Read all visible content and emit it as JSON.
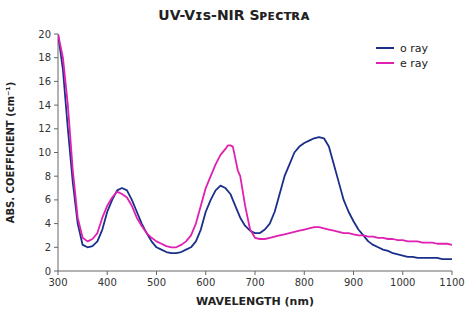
{
  "chart_data": {
    "type": "line",
    "title": "UV-Vɪs-NIR Sᴘᴇᴄᴛʀᴀ",
    "xlabel": "WAVELENGTH (nm)",
    "ylabel": "ABS. COEFFICIENT (cm⁻¹)",
    "xlim": [
      300,
      1100
    ],
    "ylim": [
      0,
      20
    ],
    "xticks": [
      300,
      400,
      500,
      600,
      700,
      800,
      900,
      1000,
      1100
    ],
    "yticks": [
      0,
      2,
      4,
      6,
      8,
      10,
      12,
      14,
      16,
      18,
      20
    ],
    "grid": false,
    "legend": "upper right",
    "series": [
      {
        "name": "o ray",
        "color": "#1a2f8a",
        "x": [
          300,
          310,
          320,
          330,
          340,
          350,
          360,
          370,
          380,
          390,
          400,
          410,
          420,
          430,
          440,
          450,
          460,
          470,
          480,
          490,
          500,
          510,
          520,
          530,
          540,
          550,
          560,
          570,
          580,
          590,
          600,
          610,
          620,
          630,
          640,
          650,
          660,
          670,
          680,
          690,
          700,
          710,
          720,
          730,
          740,
          750,
          760,
          770,
          780,
          790,
          800,
          810,
          820,
          830,
          840,
          850,
          860,
          870,
          880,
          890,
          900,
          910,
          920,
          930,
          940,
          950,
          960,
          970,
          980,
          990,
          1000,
          1010,
          1020,
          1030,
          1040,
          1050,
          1060,
          1070,
          1080,
          1090,
          1100
        ],
        "values": [
          20,
          17,
          12,
          7.5,
          4.0,
          2.2,
          2.0,
          2.1,
          2.5,
          3.5,
          5.0,
          6.0,
          6.8,
          7.0,
          6.8,
          6.0,
          5.0,
          4.0,
          3.2,
          2.5,
          2.0,
          1.8,
          1.6,
          1.5,
          1.5,
          1.6,
          1.8,
          2.0,
          2.5,
          3.5,
          5.0,
          6.0,
          6.8,
          7.2,
          7.0,
          6.5,
          5.5,
          4.5,
          3.8,
          3.4,
          3.2,
          3.2,
          3.5,
          4.0,
          5.0,
          6.5,
          8.0,
          9.0,
          10.0,
          10.5,
          10.8,
          11.0,
          11.2,
          11.3,
          11.2,
          10.5,
          9.0,
          7.5,
          6.0,
          5.0,
          4.2,
          3.5,
          3.0,
          2.5,
          2.2,
          2.0,
          1.8,
          1.7,
          1.5,
          1.4,
          1.3,
          1.2,
          1.2,
          1.1,
          1.1,
          1.1,
          1.1,
          1.1,
          1.0,
          1.0,
          1.0
        ]
      },
      {
        "name": "e ray",
        "color": "#e020b0",
        "x": [
          300,
          310,
          320,
          330,
          340,
          350,
          360,
          370,
          380,
          390,
          400,
          410,
          420,
          430,
          440,
          450,
          460,
          470,
          480,
          490,
          500,
          510,
          520,
          530,
          540,
          550,
          560,
          570,
          580,
          590,
          600,
          610,
          620,
          630,
          640,
          645,
          650,
          655,
          660,
          665,
          670,
          680,
          690,
          700,
          710,
          720,
          730,
          740,
          750,
          760,
          770,
          780,
          790,
          800,
          810,
          820,
          830,
          840,
          850,
          860,
          870,
          880,
          890,
          900,
          910,
          920,
          930,
          940,
          950,
          960,
          970,
          980,
          990,
          1000,
          1010,
          1020,
          1030,
          1040,
          1050,
          1060,
          1070,
          1080,
          1090,
          1100
        ],
        "values": [
          20,
          18,
          14,
          8.5,
          4.5,
          2.8,
          2.5,
          2.7,
          3.2,
          4.5,
          5.5,
          6.2,
          6.7,
          6.5,
          6.2,
          5.5,
          4.5,
          3.8,
          3.2,
          2.8,
          2.5,
          2.3,
          2.1,
          2.0,
          2.0,
          2.2,
          2.5,
          3.0,
          4.0,
          5.5,
          7.0,
          8.0,
          9.0,
          9.8,
          10.3,
          10.6,
          10.6,
          10.5,
          9.5,
          8.5,
          8.0,
          5.5,
          3.5,
          2.8,
          2.7,
          2.7,
          2.8,
          2.9,
          3.0,
          3.1,
          3.2,
          3.3,
          3.4,
          3.5,
          3.6,
          3.7,
          3.7,
          3.6,
          3.5,
          3.4,
          3.3,
          3.2,
          3.2,
          3.1,
          3.0,
          3.0,
          2.9,
          2.9,
          2.8,
          2.8,
          2.7,
          2.7,
          2.6,
          2.6,
          2.5,
          2.5,
          2.5,
          2.4,
          2.4,
          2.4,
          2.3,
          2.3,
          2.3,
          2.2
        ]
      }
    ]
  }
}
